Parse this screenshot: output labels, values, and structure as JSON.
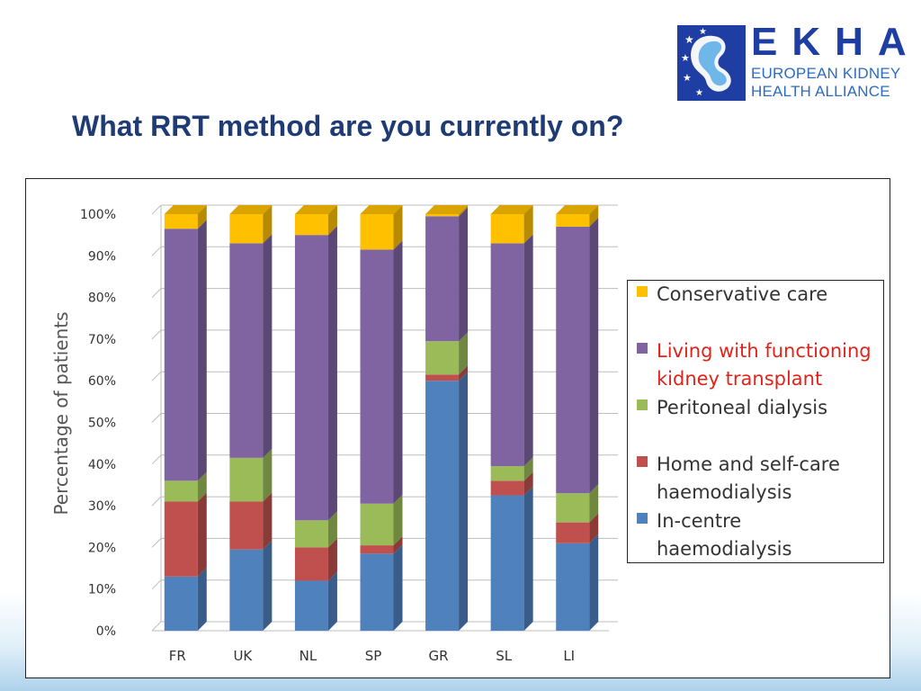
{
  "slide": {
    "title": "What RRT method are you currently on?",
    "logo": {
      "acronym": "EKHA",
      "line1": "EUROPEAN KIDNEY",
      "line2": "HEALTH ALLIANCE"
    }
  },
  "chart_data": {
    "type": "bar",
    "stacked": true,
    "percent": true,
    "title": "",
    "xlabel": "",
    "ylabel": "Percentage of patients",
    "ylim": [
      0,
      100
    ],
    "yticks": [
      "0%",
      "10%",
      "20%",
      "30%",
      "40%",
      "50%",
      "60%",
      "70%",
      "80%",
      "90%",
      "100%"
    ],
    "categories": [
      "FR",
      "UK",
      "NL",
      "SP",
      "GR",
      "SL",
      "LI"
    ],
    "series": [
      {
        "name": "In-centre haemodialysis",
        "color": "#4f81bd",
        "values": [
          13,
          19.5,
          12,
          18.5,
          60,
          32.5,
          21
        ]
      },
      {
        "name": "Home and self-care haemodialysis",
        "color": "#c0504d",
        "values": [
          18,
          11.5,
          8,
          2,
          1.5,
          3.5,
          5
        ]
      },
      {
        "name": "Peritoneal dialysis",
        "color": "#9bbb59",
        "values": [
          5,
          10.5,
          6.5,
          10,
          8,
          3.5,
          7
        ]
      },
      {
        "name": "Living with functioning kidney transplant",
        "color": "#8064a2",
        "values": [
          60.5,
          51.5,
          68.5,
          61,
          30,
          53.5,
          64
        ]
      },
      {
        "name": "Conservative care",
        "color": "#ffc000",
        "values": [
          3.5,
          7,
          5,
          8.5,
          0.5,
          7,
          3
        ]
      }
    ],
    "legend": {
      "position": "right",
      "items": [
        {
          "label": "Conservative care",
          "color": "#ffc000"
        },
        {
          "label": "Living with functioning kidney transplant",
          "line1": "Living with functioning",
          "line2": "kidney transplant",
          "color": "#8064a2"
        },
        {
          "label": "Peritoneal dialysis",
          "color": "#9bbb59"
        },
        {
          "label": "Home and self-care haemodialysis",
          "line1": "Home and self-care",
          "line2": "haemodialysis",
          "color": "#c0504d"
        },
        {
          "label": "In-centre haemodialysis",
          "color": "#4f81bd"
        }
      ]
    }
  }
}
